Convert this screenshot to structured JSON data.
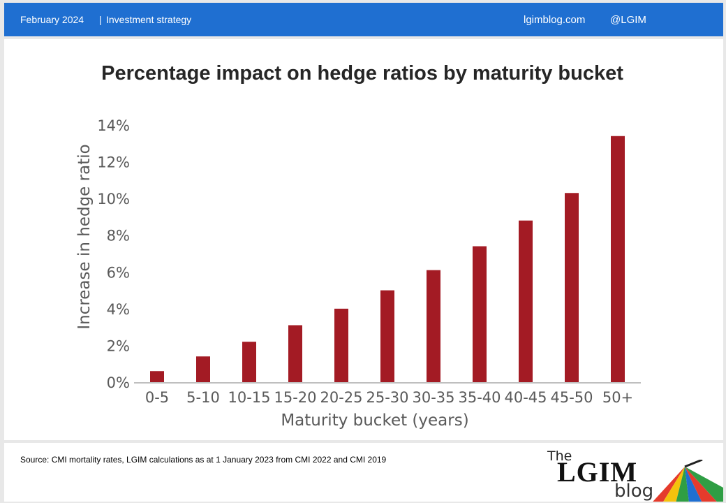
{
  "header": {
    "date": "February 2024",
    "separator": "|",
    "section": "Investment strategy",
    "site": "lgimblog.com",
    "handle": "@LGIM"
  },
  "footer": {
    "source": "Source: CMI mortality rates, LGIM  calculations as at 1 January 2023 from CMI  2022 and CMI 2019"
  },
  "logo": {
    "the": "The",
    "brand": "LGIM",
    "blog": "blog",
    "icon": "umbrella-icon"
  },
  "colors": {
    "header_bg": "#1f6fd1",
    "bar": "#a31b24",
    "axis_text": "#595959"
  },
  "chart_data": {
    "type": "bar",
    "title": "Percentage impact on hedge ratios by maturity bucket",
    "xlabel": "Maturity bucket (years)",
    "ylabel": "Increase in hedge ratio",
    "categories": [
      "0-5",
      "5-10",
      "10-15",
      "15-20",
      "20-25",
      "25-30",
      "30-35",
      "35-40",
      "40-45",
      "45-50",
      "50+"
    ],
    "values": [
      0.6,
      1.4,
      2.2,
      3.1,
      4.0,
      5.0,
      6.1,
      7.4,
      8.8,
      10.3,
      13.4
    ],
    "ylim": [
      0,
      14
    ],
    "yticks": [
      0,
      2,
      4,
      6,
      8,
      10,
      12,
      14
    ],
    "ytick_suffix": "%",
    "grid": false,
    "legend": "none"
  }
}
